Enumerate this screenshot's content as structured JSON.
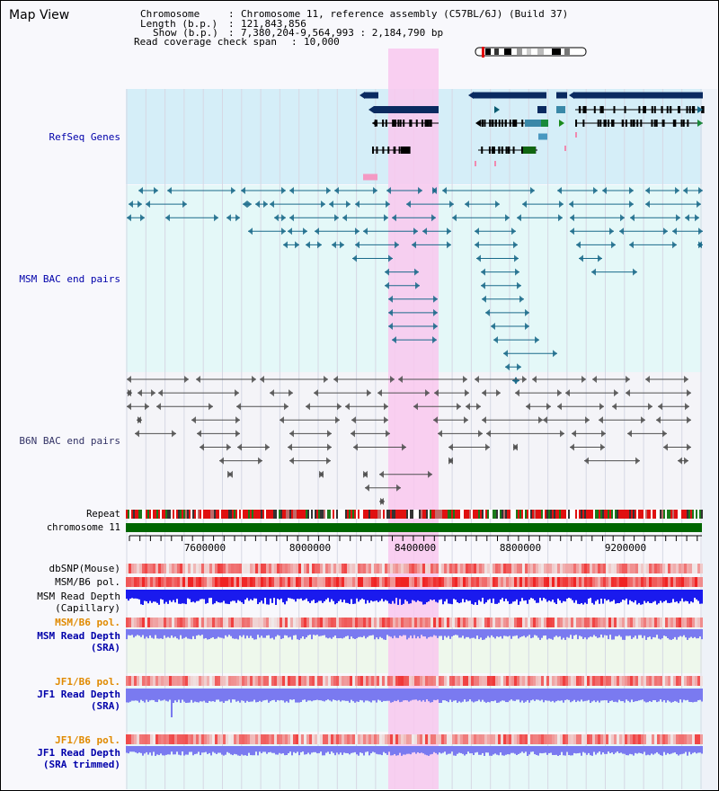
{
  "title": "Map View",
  "info": {
    "chromosome_key": "Chromosome",
    "chromosome_val": "Chromosome 11, reference assembly (C57BL/6J) (Build 37)",
    "length_key": "Length (b.p.)",
    "length_val": "121,843,856",
    "show_key": "Show (b.p.)",
    "show_val": "7,380,204-9,564,993 : 2,184,790 bp",
    "span_key": "Read coverage check span",
    "span_val": "10,000"
  },
  "tracks": {
    "refseq": "RefSeq Genes",
    "msm_bac": "MSM BAC end pairs",
    "b6n_bac": "B6N BAC end pairs",
    "repeat": "Repeat",
    "chromosome": "chromosome 11",
    "dbsnp": "dbSNP(Mouse)",
    "msm_b6_pol": "MSM/B6 pol.",
    "msm_read_depth_cap_1": "MSM Read Depth",
    "msm_read_depth_cap_2": "(Capillary)",
    "msm_b6_pol_2": "MSM/B6 pol.",
    "msm_read_depth_sra_1": "MSM Read Depth",
    "msm_read_depth_sra_2": "(SRA)",
    "jf1_b6_pol": "JF1/B6 pol.",
    "jf1_read_depth_sra_1": "JF1 Read Depth",
    "jf1_read_depth_sra_2": "(SRA)",
    "jf1_b6_pol_2": "JF1/B6 pol.",
    "jf1_read_depth_trim_1": "JF1 Read Depth",
    "jf1_read_depth_trim_2": "(SRA trimmed)"
  },
  "axis": {
    "ticks": [
      "7600000",
      "8000000",
      "8400000",
      "8800000",
      "9200000"
    ]
  },
  "colors": {
    "label_black": "#000000",
    "label_blue": "#0000aa",
    "label_orange": "#e08a00",
    "highlight": "#f9c8ee",
    "refseq_bg": "#d5eef8",
    "bac_bg": "#e4f8f8",
    "gene_dark": "#0a2a60",
    "msm_bac_line": "#1a6a8a",
    "b6n_bac_line": "#505050",
    "chrom_bar": "#006600",
    "depth_blue": "#1a1aee",
    "depth_light": "#7a7af0"
  }
}
